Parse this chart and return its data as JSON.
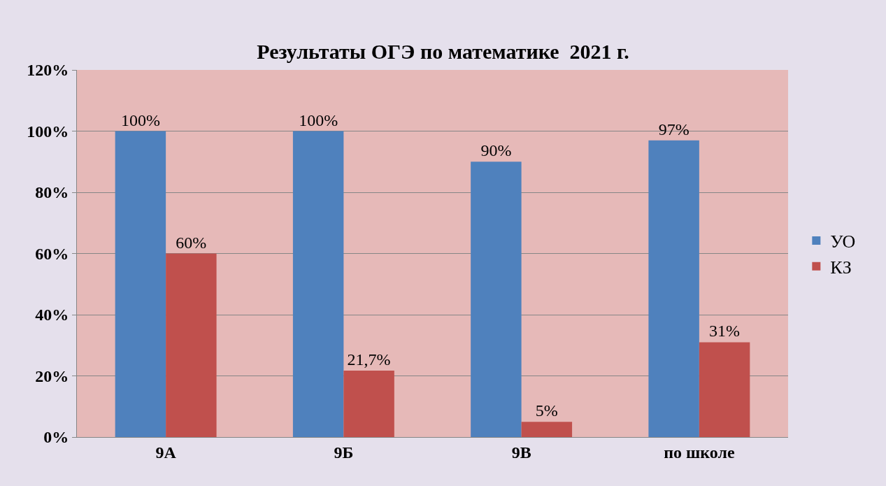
{
  "chart_data": {
    "type": "bar",
    "title": "Результаты ОГЭ по математике  2021 г.",
    "categories": [
      "9А",
      "9Б",
      "9В",
      "по школе"
    ],
    "series": [
      {
        "name": "УО",
        "color": "#4f81bd",
        "values": [
          100,
          100,
          90,
          97
        ],
        "value_labels": [
          "100%",
          "100%",
          "90%",
          "97%"
        ]
      },
      {
        "name": "КЗ",
        "color": "#c0504d",
        "values": [
          60,
          21.7,
          5,
          31
        ],
        "value_labels": [
          "60%",
          "21,7%",
          "5%",
          "31%"
        ]
      }
    ],
    "ylim": [
      0,
      120
    ],
    "yticks": [
      {
        "value": 0,
        "label": "0%"
      },
      {
        "value": 20,
        "label": "20%"
      },
      {
        "value": 40,
        "label": "40%"
      },
      {
        "value": 60,
        "label": "60%"
      },
      {
        "value": 80,
        "label": "80%"
      },
      {
        "value": 100,
        "label": "100%"
      },
      {
        "value": 120,
        "label": "120%"
      }
    ],
    "grid": "y",
    "legend": "right"
  }
}
